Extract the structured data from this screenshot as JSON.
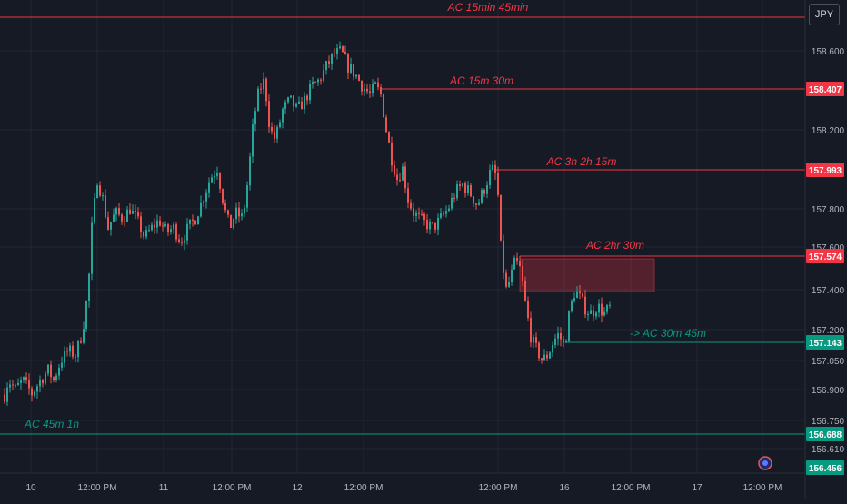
{
  "toolbar": {
    "currency": "JPY"
  },
  "colors": {
    "up": "#26a69a",
    "down": "#ef5350",
    "level_red": "#f23645",
    "level_green": "#089981",
    "bg": "#161a25",
    "grid": "#232734",
    "axis_text": "#b2b5be"
  },
  "chart_data": {
    "type": "candlestick",
    "title": "",
    "xlabel": "",
    "ylabel": "",
    "x_ticks": [
      "10",
      "12:00 PM",
      "11",
      "12:00 PM",
      "12",
      "12:00 PM",
      "12:00 PM",
      "16",
      "12:00 PM",
      "17",
      "12:00 PM"
    ],
    "y_ticks": [
      "158.600",
      "158.200",
      "157.800",
      "157.600",
      "157.400",
      "157.200",
      "157.050",
      "156.900",
      "156.750",
      "156.610"
    ],
    "ylim": [
      156.35,
      158.83
    ],
    "price_badges": [
      {
        "value": "158.407",
        "color": "red"
      },
      {
        "value": "157.993",
        "color": "red"
      },
      {
        "value": "157.574",
        "color": "red"
      },
      {
        "value": "157.143",
        "color": "green"
      },
      {
        "value": "156.688",
        "color": "green"
      },
      {
        "value": "156.456",
        "color": "green"
      }
    ],
    "levels": [
      {
        "label": "AC 15min 45min",
        "price": 158.8,
        "color": "red"
      },
      {
        "label": "AC 15m 30m",
        "price": 158.407,
        "color": "red"
      },
      {
        "label": "AC 3h 2h 15m",
        "price": 157.993,
        "color": "red"
      },
      {
        "label": "AC 2hr 30m",
        "price": 157.574,
        "color": "red"
      },
      {
        "label": "-> AC 30m 45m",
        "price": 157.143,
        "color": "green"
      },
      {
        "label": "AC 45m 1h",
        "price": 156.688,
        "color": "green"
      }
    ],
    "zone": {
      "price_top": 157.56,
      "price_bottom": 157.39
    },
    "path": [
      [
        0,
        156.8
      ],
      [
        8,
        156.95
      ],
      [
        16,
        156.9
      ],
      [
        24,
        156.95
      ],
      [
        34,
        156.88
      ],
      [
        44,
        156.95
      ],
      [
        52,
        157.0
      ],
      [
        58,
        156.95
      ],
      [
        66,
        157.05
      ],
      [
        74,
        157.1
      ],
      [
        82,
        157.08
      ],
      [
        90,
        157.2
      ],
      [
        96,
        157.4
      ],
      [
        100,
        157.7
      ],
      [
        106,
        157.95
      ],
      [
        112,
        157.85
      ],
      [
        118,
        157.7
      ],
      [
        126,
        157.78
      ],
      [
        134,
        157.75
      ],
      [
        142,
        157.8
      ],
      [
        150,
        157.74
      ],
      [
        158,
        157.65
      ],
      [
        166,
        157.7
      ],
      [
        174,
        157.74
      ],
      [
        182,
        157.68
      ],
      [
        190,
        157.7
      ],
      [
        198,
        157.63
      ],
      [
        206,
        157.7
      ],
      [
        214,
        157.75
      ],
      [
        222,
        157.85
      ],
      [
        230,
        157.95
      ],
      [
        238,
        158.0
      ],
      [
        246,
        157.8
      ],
      [
        252,
        157.7
      ],
      [
        258,
        157.78
      ],
      [
        266,
        157.75
      ],
      [
        272,
        157.95
      ],
      [
        278,
        158.25
      ],
      [
        284,
        158.4
      ],
      [
        290,
        158.45
      ],
      [
        296,
        158.2
      ],
      [
        302,
        158.15
      ],
      [
        310,
        158.3
      ],
      [
        318,
        158.35
      ],
      [
        326,
        158.3
      ],
      [
        334,
        158.35
      ],
      [
        342,
        158.42
      ],
      [
        350,
        158.45
      ],
      [
        358,
        158.52
      ],
      [
        366,
        158.58
      ],
      [
        374,
        158.6
      ],
      [
        382,
        158.52
      ],
      [
        390,
        158.48
      ],
      [
        398,
        158.42
      ],
      [
        406,
        158.38
      ],
      [
        412,
        158.42
      ],
      [
        418,
        158.38
      ],
      [
        424,
        158.2
      ],
      [
        430,
        158.05
      ],
      [
        436,
        157.95
      ],
      [
        442,
        158.0
      ],
      [
        448,
        157.85
      ],
      [
        454,
        157.78
      ],
      [
        460,
        157.75
      ],
      [
        468,
        157.72
      ],
      [
        476,
        157.7
      ],
      [
        484,
        157.75
      ],
      [
        492,
        157.8
      ],
      [
        500,
        157.88
      ],
      [
        508,
        157.92
      ],
      [
        516,
        157.88
      ],
      [
        524,
        157.82
      ],
      [
        532,
        157.9
      ],
      [
        540,
        158.0
      ],
      [
        546,
        157.95
      ],
      [
        550,
        157.6
      ],
      [
        556,
        157.4
      ],
      [
        560,
        157.45
      ],
      [
        566,
        157.55
      ],
      [
        572,
        157.5
      ],
      [
        578,
        157.3
      ],
      [
        584,
        157.15
      ],
      [
        590,
        157.1
      ],
      [
        596,
        157.05
      ],
      [
        602,
        157.08
      ],
      [
        608,
        157.15
      ],
      [
        614,
        157.18
      ],
      [
        620,
        157.12
      ],
      [
        626,
        157.3
      ],
      [
        632,
        157.4
      ],
      [
        638,
        157.35
      ],
      [
        644,
        157.3
      ],
      [
        650,
        157.28
      ],
      [
        656,
        157.32
      ],
      [
        664,
        157.28
      ],
      [
        672,
        157.32
      ]
    ]
  }
}
